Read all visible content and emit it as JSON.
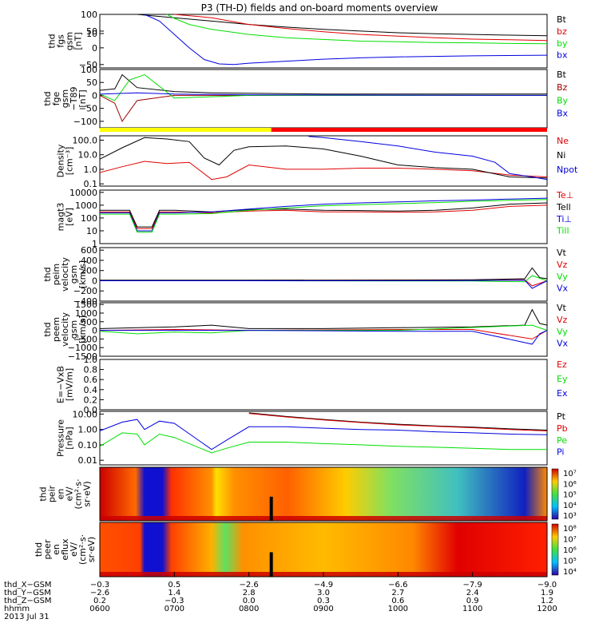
{
  "title": "P3 (TH-D) fields and on-board moments overview",
  "colors": {
    "black": "#000000",
    "red": "#e00000",
    "green": "#00e000",
    "blue": "#0000e0",
    "dark_red": "#a00000",
    "yellow": "#ffff00",
    "bar_red": "#ff0000"
  },
  "chart_data": [
    {
      "id": "fgs",
      "type": "line",
      "ylabel": [
        "thd",
        "fgs",
        "gsm",
        "[nT]"
      ],
      "yticks": [
        "100",
        "50",
        "0",
        "−50"
      ],
      "ylim": [
        -60,
        100
      ],
      "series": [
        {
          "name": "Bt",
          "color": "#000000",
          "x": [
            6.5,
            6.7,
            7.0,
            7.5,
            8.0,
            8.5,
            9.0,
            9.5,
            10.0,
            10.5,
            11.0,
            11.5,
            12.0
          ],
          "y": [
            100,
            96,
            90,
            80,
            70,
            62,
            55,
            50,
            45,
            42,
            40,
            38,
            36
          ]
        },
        {
          "name": "bz",
          "color": "#e00000",
          "x": [
            7.0,
            7.5,
            8.0,
            8.5,
            9.0,
            9.5,
            10.0,
            10.5,
            11.0,
            11.5,
            12.0
          ],
          "y": [
            100,
            90,
            70,
            58,
            48,
            40,
            35,
            30,
            26,
            24,
            22
          ]
        },
        {
          "name": "by",
          "color": "#00e000",
          "x": [
            6.9,
            7.0,
            7.2,
            7.5,
            8.0,
            8.5,
            9.0,
            9.5,
            10.0,
            10.5,
            11.0,
            11.5,
            12.0
          ],
          "y": [
            100,
            88,
            70,
            55,
            40,
            30,
            25,
            20,
            18,
            16,
            15,
            13,
            12
          ]
        },
        {
          "name": "bx",
          "color": "#0000e0",
          "x": [
            6.6,
            6.8,
            7.0,
            7.2,
            7.4,
            7.6,
            7.8,
            8.0,
            8.5,
            9.0,
            9.5,
            10.0,
            11.0,
            12.0
          ],
          "y": [
            100,
            80,
            40,
            0,
            -35,
            -48,
            -50,
            -46,
            -40,
            -34,
            -30,
            -27,
            -24,
            -22
          ]
        }
      ]
    },
    {
      "id": "fge",
      "type": "line",
      "ylabel": [
        "thd",
        "fge",
        "gsm",
        "−T89",
        "[nT]"
      ],
      "yticks": [
        "100",
        "50",
        "0",
        "−50",
        "−100"
      ],
      "ylim": [
        -125,
        100
      ],
      "series": [
        {
          "name": "Bt",
          "color": "#000000",
          "x": [
            6.0,
            6.2,
            6.3,
            6.5,
            7.0,
            7.5,
            8.0,
            9.0,
            10.0,
            11.0,
            12.0
          ],
          "y": [
            20,
            25,
            80,
            30,
            15,
            10,
            8,
            5,
            5,
            5,
            5
          ]
        },
        {
          "name": "Bz",
          "color": "#a00000",
          "x": [
            6.0,
            6.2,
            6.3,
            6.4,
            6.5,
            7.0,
            8.0,
            12.0
          ],
          "y": [
            0,
            -30,
            -100,
            -60,
            -20,
            0,
            0,
            0
          ]
        },
        {
          "name": "By",
          "color": "#00e000",
          "x": [
            6.0,
            6.2,
            6.4,
            6.6,
            7.0,
            8.0,
            12.0
          ],
          "y": [
            5,
            -20,
            60,
            80,
            -10,
            0,
            0
          ]
        },
        {
          "name": "Bx",
          "color": "#0000e0",
          "x": [
            6.0,
            6.5,
            7.0,
            8.0,
            12.0
          ],
          "y": [
            5,
            10,
            5,
            2,
            0
          ]
        }
      ]
    },
    {
      "id": "density",
      "type": "line",
      "ylog": true,
      "ylabel": [
        "Density",
        "[cm⁻³]"
      ],
      "yticks": [
        "100.0",
        "10.0",
        "1.0",
        "0.1"
      ],
      "ylim": [
        0.07,
        200
      ],
      "series": [
        {
          "name": "Ne",
          "color": "#e00000",
          "x": [
            6.0,
            6.3,
            6.6,
            6.9,
            7.2,
            7.5,
            7.7,
            8.0,
            8.5,
            9.0,
            9.5,
            10.0,
            10.5,
            11.0,
            11.5,
            12.0
          ],
          "y": [
            0.6,
            1.5,
            3.5,
            2.5,
            3.0,
            0.2,
            0.3,
            2.0,
            1.0,
            1.0,
            1.2,
            1.2,
            1.0,
            0.8,
            0.4,
            0.3
          ]
        },
        {
          "name": "Ni",
          "color": "#000000",
          "x": [
            6.0,
            6.3,
            6.6,
            6.9,
            7.2,
            7.4,
            7.6,
            7.8,
            8.0,
            8.5,
            9.0,
            9.5,
            10.0,
            10.5,
            11.0,
            11.5,
            12.0
          ],
          "y": [
            5,
            30,
            150,
            120,
            80,
            6,
            2,
            20,
            35,
            40,
            25,
            8,
            2,
            1.3,
            1.0,
            0.3,
            0.25
          ]
        },
        {
          "name": "Npot",
          "color": "#0000e0",
          "x": [
            8.8,
            9.0,
            9.5,
            10.0,
            10.5,
            11.0,
            11.3,
            11.5,
            11.8,
            12.0
          ],
          "y": [
            180,
            150,
            80,
            40,
            15,
            8,
            3,
            0.5,
            0.3,
            0.2
          ]
        }
      ]
    },
    {
      "id": "temperature",
      "type": "line",
      "ylog": true,
      "ylabel": [
        "magt3",
        "[eV]"
      ],
      "yticks": [
        "10000",
        "1000",
        "100",
        "10",
        "1"
      ],
      "ylim": [
        1,
        15000
      ],
      "series": [
        {
          "name": "Te⊥",
          "color": "#e00000",
          "x": [
            6.0,
            6.4,
            6.5,
            6.7,
            6.8,
            7.0,
            7.5,
            8.0,
            8.5,
            9.0,
            9.5,
            10.0,
            10.5,
            11.0,
            11.5,
            12.0
          ],
          "y": [
            300,
            300,
            15,
            15,
            300,
            300,
            250,
            350,
            400,
            300,
            300,
            280,
            300,
            400,
            800,
            1000
          ]
        },
        {
          "name": "Tell",
          "color": "#000000",
          "x": [
            6.0,
            6.4,
            6.5,
            6.7,
            6.8,
            7.0,
            7.5,
            8.0,
            8.5,
            9.0,
            9.5,
            10.0,
            10.5,
            11.0,
            11.5,
            12.0
          ],
          "y": [
            400,
            400,
            20,
            20,
            400,
            400,
            300,
            450,
            500,
            400,
            380,
            350,
            400,
            600,
            1200,
            1500
          ]
        },
        {
          "name": "Ti⊥",
          "color": "#0000e0",
          "x": [
            6.0,
            6.4,
            6.5,
            6.7,
            6.8,
            7.0,
            7.5,
            8.0,
            8.5,
            9.0,
            9.5,
            10.0,
            10.5,
            11.0,
            11.5,
            12.0
          ],
          "y": [
            250,
            250,
            10,
            10,
            250,
            250,
            300,
            500,
            800,
            1200,
            1500,
            1800,
            2200,
            2500,
            3000,
            3500
          ]
        },
        {
          "name": "Till",
          "color": "#00e000",
          "x": [
            6.0,
            6.4,
            6.5,
            6.7,
            6.8,
            7.0,
            7.5,
            8.0,
            8.5,
            9.0,
            9.5,
            10.0,
            10.5,
            11.0,
            11.5,
            12.0
          ],
          "y": [
            200,
            200,
            8,
            8,
            200,
            200,
            220,
            400,
            600,
            900,
            1100,
            1300,
            1600,
            2000,
            2400,
            2800
          ]
        }
      ]
    },
    {
      "id": "peim_velocity",
      "type": "line",
      "ylabel": [
        "thd",
        "peim",
        "velocity",
        "gsm",
        "[km/s]"
      ],
      "yticks": [
        "600",
        "400",
        "200",
        "0",
        "−200",
        "−400"
      ],
      "ylim": [
        -400,
        650
      ],
      "series": [
        {
          "name": "Vt",
          "color": "#000000",
          "x": [
            6.0,
            8.0,
            10.0,
            11.0,
            11.7,
            11.8,
            11.9,
            12.0
          ],
          "y": [
            10,
            10,
            15,
            20,
            40,
            250,
            60,
            40
          ]
        },
        {
          "name": "Vz",
          "color": "#e00000",
          "x": [
            6.0,
            8.0,
            10.0,
            11.0,
            11.7,
            11.8,
            12.0
          ],
          "y": [
            0,
            0,
            5,
            5,
            20,
            -100,
            0
          ]
        },
        {
          "name": "Vy",
          "color": "#00e000",
          "x": [
            6.0,
            8.0,
            10.0,
            11.0,
            11.7,
            11.8,
            12.0
          ],
          "y": [
            0,
            0,
            -5,
            -5,
            -20,
            100,
            0
          ]
        },
        {
          "name": "Vx",
          "color": "#0000e0",
          "x": [
            6.0,
            8.0,
            10.0,
            11.0,
            11.7,
            11.8,
            12.0
          ],
          "y": [
            0,
            0,
            0,
            5,
            10,
            -150,
            0
          ]
        }
      ]
    },
    {
      "id": "peem_velocity",
      "type": "line",
      "ylabel": [
        "thd",
        "peem",
        "velocity",
        "gsm",
        "[km/s]"
      ],
      "yticks": [
        "1500",
        "1000",
        "500",
        "0",
        "−500",
        "−1000",
        "−1500"
      ],
      "ylim": [
        -1500,
        1600
      ],
      "series": [
        {
          "name": "Vt",
          "color": "#000000",
          "x": [
            6.0,
            6.5,
            7.0,
            7.5,
            8.0,
            9.0,
            10.0,
            11.0,
            11.7,
            11.8,
            11.9,
            12.0
          ],
          "y": [
            100,
            150,
            200,
            300,
            100,
            100,
            150,
            200,
            300,
            1200,
            400,
            300
          ]
        },
        {
          "name": "Vz",
          "color": "#e00000",
          "x": [
            6.0,
            7.0,
            8.0,
            10.0,
            11.0,
            11.8,
            12.0
          ],
          "y": [
            0,
            50,
            0,
            50,
            50,
            -500,
            0
          ]
        },
        {
          "name": "Vy",
          "color": "#00e000",
          "x": [
            6.0,
            6.5,
            7.0,
            7.5,
            8.0,
            10.0,
            11.8,
            12.0
          ],
          "y": [
            -50,
            -200,
            -100,
            -150,
            0,
            0,
            300,
            0
          ]
        },
        {
          "name": "Vx",
          "color": "#0000e0",
          "x": [
            6.0,
            8.0,
            10.0,
            11.0,
            11.8,
            11.9,
            12.0
          ],
          "y": [
            0,
            0,
            -50,
            -50,
            -800,
            -200,
            0
          ]
        }
      ]
    },
    {
      "id": "efield",
      "type": "line",
      "ylabel": [
        "E=−VxB",
        "[mV/m]"
      ],
      "yticks": [
        "1.0",
        "0.8",
        "0.6",
        "0.4",
        "0.2",
        "0.0"
      ],
      "ylim": [
        0,
        1
      ],
      "series": [
        {
          "name": "Ez",
          "color": "#e00000",
          "x": [],
          "y": []
        },
        {
          "name": "Ey",
          "color": "#00e000",
          "x": [],
          "y": []
        },
        {
          "name": "Ex",
          "color": "#0000e0",
          "x": [],
          "y": []
        }
      ]
    },
    {
      "id": "pressure",
      "type": "line",
      "ylog": true,
      "ylabel": [
        "Pressure",
        "[nPa]"
      ],
      "yticks": [
        "10.00",
        "1.00",
        "0.10",
        "0.01"
      ],
      "ylim": [
        0.005,
        15
      ],
      "series": [
        {
          "name": "Pt",
          "color": "#000000",
          "x": [
            8.0,
            8.5,
            9.0,
            9.5,
            10.0,
            10.5,
            11.0,
            11.5,
            12.0
          ],
          "y": [
            12,
            7,
            4.5,
            3,
            2.2,
            1.7,
            1.4,
            1.1,
            0.9
          ]
        },
        {
          "name": "Pb",
          "color": "#e00000",
          "x": [
            8.0,
            8.5,
            9.0,
            9.5,
            10.0,
            10.5,
            11.0,
            11.5,
            12.0
          ],
          "y": [
            11,
            6.5,
            4.2,
            2.8,
            2.0,
            1.6,
            1.3,
            1.0,
            0.8
          ]
        },
        {
          "name": "Pe",
          "color": "#00e000",
          "x": [
            6.0,
            6.3,
            6.5,
            6.6,
            6.8,
            7.0,
            7.5,
            7.7,
            8.0,
            8.5,
            9.0,
            9.5,
            10.0,
            10.5,
            11.0,
            11.5,
            12.0
          ],
          "y": [
            0.08,
            0.6,
            0.5,
            0.1,
            0.5,
            0.3,
            0.03,
            0.06,
            0.15,
            0.15,
            0.12,
            0.1,
            0.08,
            0.07,
            0.06,
            0.05,
            0.05
          ]
        },
        {
          "name": "Pi",
          "color": "#0000e0",
          "x": [
            6.0,
            6.3,
            6.5,
            6.6,
            6.8,
            7.0,
            7.5,
            7.7,
            8.0,
            8.5,
            9.0,
            9.5,
            10.0,
            10.5,
            11.0,
            11.5,
            12.0
          ],
          "y": [
            0.8,
            3.0,
            4.5,
            1.0,
            3.5,
            2.5,
            0.05,
            0.2,
            1.5,
            1.5,
            1.2,
            1.0,
            0.9,
            0.7,
            0.6,
            0.5,
            0.45
          ]
        }
      ]
    },
    {
      "id": "peir_eflux",
      "type": "heatmap",
      "ylabel": [
        "thd",
        "peir",
        "en",
        "eV/",
        "(cm²·s·",
        "sr·eV)"
      ],
      "yticks": [
        "10000",
        "1000",
        "100",
        "10"
      ],
      "colorbar_ticks": [
        "10⁷",
        "10⁶",
        "10⁵",
        "10⁴",
        "10³"
      ]
    },
    {
      "id": "peer_eflux",
      "type": "heatmap",
      "ylabel": [
        "thd",
        "peer",
        "en",
        "eflux",
        "eV/",
        "(cm²·s·",
        "sr·eV)"
      ],
      "yticks": [
        "10000",
        "1000",
        "100",
        "10"
      ],
      "colorbar_ticks": [
        "10⁸",
        "10⁷",
        "10⁶",
        "10⁵",
        "10⁴"
      ]
    }
  ],
  "mode_bar": {
    "x": [
      6.0,
      8.3,
      12.0
    ],
    "colors": [
      "#ffff00",
      "#ff0000"
    ]
  },
  "xaxis": {
    "rows": [
      {
        "label": "thd_X−GSM",
        "values": [
          "−0.3",
          "0.5",
          "−2.6",
          "−4.9",
          "−6.6",
          "−7.9",
          "−9.0"
        ]
      },
      {
        "label": "thd_Y−GSM",
        "values": [
          "−2.6",
          "1.4",
          "2.8",
          "3.0",
          "2.7",
          "2.4",
          "1.9"
        ]
      },
      {
        "label": "thd_Z−GSM",
        "values": [
          "0.2",
          "−0.3",
          "0.0",
          "0.3",
          "0.6",
          "0.9",
          "1.2"
        ]
      },
      {
        "label": "hhmm",
        "values": [
          "0600",
          "0700",
          "0800",
          "0900",
          "1000",
          "1100",
          "1200"
        ]
      }
    ],
    "date": "2013 Jul 31"
  }
}
